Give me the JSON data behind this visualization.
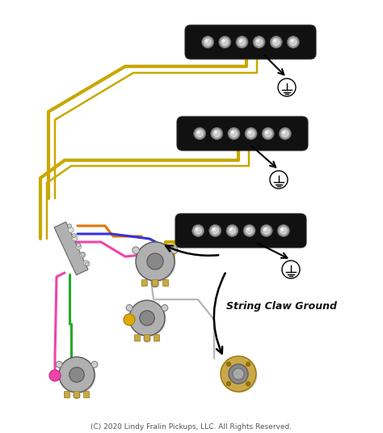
{
  "background": "#ffffff",
  "copyright_text": "(C) 2020 Lindy Fralin Pickups, LLC. All Rights Reserved.",
  "copyright_fontsize": 6.5,
  "pickup_color": "#111111",
  "pole_color": "#cccccc",
  "pole_highlight": "#ffffff",
  "ground_color": "#000000",
  "wire_yellow": "#c8a800",
  "wire_black": "#111111",
  "wire_blue": "#3333dd",
  "wire_green": "#22aa22",
  "wire_pink": "#ee44aa",
  "wire_orange": "#dd7700",
  "wire_white": "#dddddd",
  "wire_gray": "#888888",
  "wire_purple": "#7733bb",
  "arrow_color": "#111111",
  "label_color": "#111111",
  "string_claw_text": "String Claw Ground",
  "string_claw_fontsize": 9,
  "string_claw_fontweight": "bold",
  "pot_outer": "#aaaaaa",
  "pot_inner": "#777777",
  "pot_lug": "#bbbbbb",
  "switch_body": "#aaaaaa",
  "jack_body": "#c8a84b",
  "jack_center": "#888888"
}
